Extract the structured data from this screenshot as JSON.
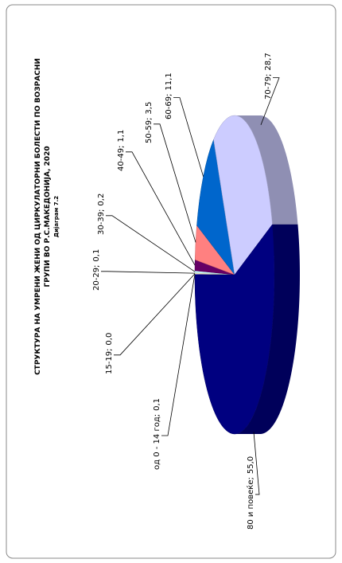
{
  "chart_data": {
    "type": "pie",
    "title": "СТРУКТУРА НА УМРЕНИ ЖЕНИ ОД ЦИРКУЛАТОРНИ БОЛЕСТИ ПО ВОЗРАСНИ",
    "subtitle": "ГРУПИ ВО Р.С.МАКЕДОНИЈА, 2020",
    "caption": "Дијаграм 7.2",
    "label_separator": ";",
    "categories": [
      "од 0 - 14 год",
      "15-19",
      "20-29",
      "30-39",
      "40-49",
      "50-59",
      "60-69",
      "70-79",
      "80 и повеќе"
    ],
    "values": [
      0.1,
      0.0,
      0.1,
      0.2,
      1.1,
      3.5,
      11.1,
      28.7,
      55.0
    ],
    "value_labels": [
      "0,1",
      "0,0",
      "0,1",
      "0,2",
      "1,1",
      "3,5",
      "11,1",
      "28,7",
      "55,0"
    ],
    "colors": [
      "#9999ff",
      "#993366",
      "#ffffcc",
      "#ccffff",
      "#660066",
      "#ff8080",
      "#0066cc",
      "#ccccff",
      "#000080"
    ]
  }
}
